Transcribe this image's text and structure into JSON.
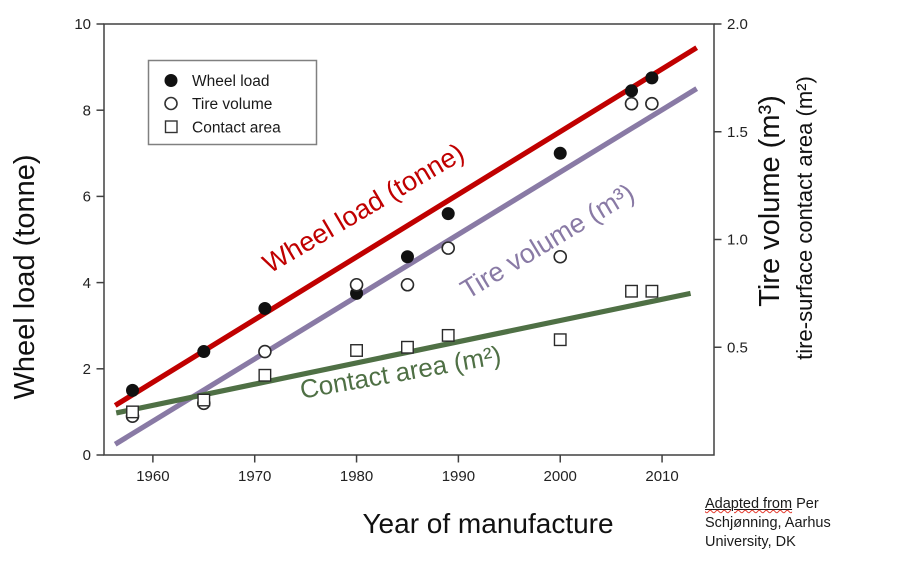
{
  "chart_data": {
    "type": "scatter",
    "title": "",
    "xlabel": "Year of manufacture",
    "ylabel_left": "Wheel load (tonne)",
    "ylabel_right": "Tire volume (m³)",
    "ylabel_right_sub": "tire-surface contact area (m²)",
    "x_range": [
      1955.2,
      2015.1
    ],
    "y_left_range": [
      0,
      10
    ],
    "y_right_range": [
      0,
      2
    ],
    "x_ticks": [
      "1960",
      "1970",
      "1980",
      "1990",
      "2000",
      "2010"
    ],
    "y_left_ticks": [
      "0",
      "2",
      "4",
      "6",
      "8",
      "10"
    ],
    "y_right_ticks": [
      "0.5",
      "1.0",
      "1.5",
      "2.0"
    ],
    "grid": false,
    "legend": {
      "position": "upper-left-inside",
      "items": [
        {
          "label": "Wheel load",
          "marker": "filled-circle"
        },
        {
          "label": "Tire volume",
          "marker": "open-circle"
        },
        {
          "label": "Contact area",
          "marker": "open-square"
        }
      ]
    },
    "x_years": [
      1958,
      1965,
      1971,
      1980,
      1985,
      1989,
      2000,
      2007,
      2009
    ],
    "series": [
      {
        "name": "Wheel load",
        "axis": "left",
        "unit": "tonne",
        "marker": "filled-circle",
        "marker_color": "#111111",
        "values": [
          1.5,
          2.4,
          3.4,
          3.75,
          4.6,
          5.6,
          7.0,
          8.45,
          8.75
        ],
        "trend": {
          "color": "#c00000",
          "x1": 1956.3,
          "y1": 1.15,
          "x2": 2013.4,
          "y2": 9.45
        },
        "inline_label": {
          "text": "Wheel load (tonne)",
          "color": "#c00000"
        }
      },
      {
        "name": "Tire volume",
        "axis": "right",
        "unit": "m³",
        "marker": "open-circle",
        "marker_color": "#2a2a2a",
        "values": [
          0.18,
          0.24,
          0.48,
          0.79,
          0.79,
          0.96,
          0.92,
          1.63,
          1.63
        ],
        "trend": {
          "color": "#897aa5",
          "x1": 1956.3,
          "y1": 0.05,
          "x2": 2013.4,
          "y2": 1.7
        },
        "inline_label": {
          "text": "Tire volume (m³)",
          "color": "#897aa5"
        }
      },
      {
        "name": "Contact area",
        "axis": "right",
        "unit": "m²",
        "marker": "open-square",
        "marker_color": "#2a2a2a",
        "values": [
          0.2,
          0.255,
          0.37,
          0.485,
          0.5,
          0.555,
          0.535,
          0.76,
          0.76
        ],
        "trend": {
          "color": "#4f7045",
          "x1": 1956.4,
          "y1": 0.195,
          "x2": 2012.8,
          "y2": 0.75
        },
        "inline_label": {
          "text": "Contact area (m²)",
          "color": "#4f7045"
        }
      }
    ]
  },
  "attribution": {
    "underlined_text": "Adapted from",
    "rest_line1": " Per",
    "line2": "Schjønning, Aarhus",
    "line3": "University, DK"
  }
}
